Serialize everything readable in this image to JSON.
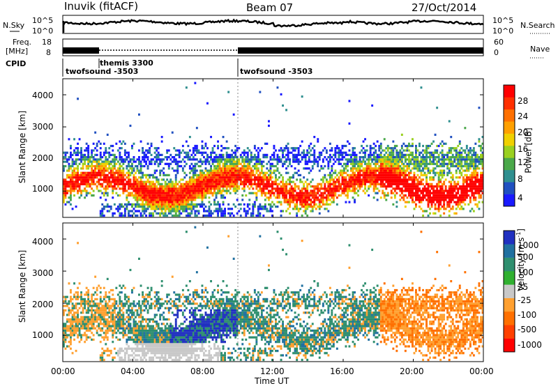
{
  "header": {
    "station": "Inuvik (fitACF)",
    "beam": "Beam 07",
    "date": "27/Oct/2014"
  },
  "strip": {
    "nsky_label": "N.Sky",
    "nsky_top": "10^5",
    "nsky_bottom": "10^0",
    "nsearch_label": "N.Search",
    "nsearch_top": "10^5",
    "nsearch_bottom": "10^0",
    "freq_label_1": "Freq.",
    "freq_label_2": "[MHz]",
    "freq_top": "18",
    "freq_bottom": "8",
    "nave_label": "Nave",
    "nave_top": "60",
    "nave_bottom": "0",
    "cpid_label": "CPID"
  },
  "cpid_segments": [
    {
      "name": "twofsound -3503",
      "start_ut": 0.0,
      "end_ut": 2.0
    },
    {
      "name": "themis 3300",
      "start_ut": 2.0,
      "end_ut": 10.0
    },
    {
      "name": "twofsound -3503",
      "start_ut": 10.0,
      "end_ut": 24.0
    }
  ],
  "colorbars": {
    "power": {
      "label": "Power [dB]",
      "colors": [
        "#1a1aff",
        "#2050c0",
        "#2f8f8f",
        "#4aa84a",
        "#9ad020",
        "#f0d000",
        "#ffa000",
        "#ff7000",
        "#ff3000",
        "#ff0000"
      ],
      "ticks": [
        "4",
        "8",
        "12",
        "16",
        "20",
        "24",
        "28"
      ]
    },
    "velocity": {
      "label": "Velocity [m s",
      "label_sup": "-1",
      "label_end": "]",
      "colors": [
        "#2030c0",
        "#2070a0",
        "#2f8f6f",
        "#30b030",
        "#c8c8c8",
        "#ffa030",
        "#ff7000",
        "#ff4000",
        "#ff0000"
      ],
      "ticks": [
        "1000",
        "500",
        "100",
        "25",
        "-25",
        "-100",
        "-500",
        "-1000"
      ]
    }
  },
  "chart_data": [
    {
      "type": "heatmap",
      "title": "",
      "quantity": "Power",
      "xlabel": "",
      "ylabel": "Slant Range [km]",
      "xlim": [
        0,
        24
      ],
      "ylim": [
        180,
        4500
      ],
      "y_ticks": [
        "1000",
        "2000",
        "3000",
        "4000"
      ],
      "colorbar_label": "Power [dB]",
      "colorbar_ticks": [
        4,
        8,
        12,
        16,
        20,
        24,
        28
      ]
    },
    {
      "type": "heatmap",
      "title": "",
      "quantity": "Velocity",
      "xlabel": "Time UT",
      "ylabel": "Slant Range [km]",
      "xlim": [
        0,
        24
      ],
      "ylim": [
        180,
        4500
      ],
      "x_ticks": [
        "00:00",
        "04:00",
        "08:00",
        "12:00",
        "16:00",
        "20:00",
        "00:00"
      ],
      "y_ticks": [
        "1000",
        "2000",
        "3000",
        "4000"
      ],
      "colorbar_label": "Velocity [m s-1]",
      "colorbar_ticks": [
        1000,
        500,
        100,
        25,
        -25,
        -100,
        -500,
        -1000
      ]
    }
  ],
  "axes": {
    "ylabel": "Slant Range [km]",
    "xlabel": "Time UT",
    "y_ticks": [
      "1000",
      "2000",
      "3000",
      "4000"
    ],
    "x_ticks": [
      "00:00",
      "04:00",
      "08:00",
      "12:00",
      "16:00",
      "20:00",
      "00:00"
    ]
  }
}
